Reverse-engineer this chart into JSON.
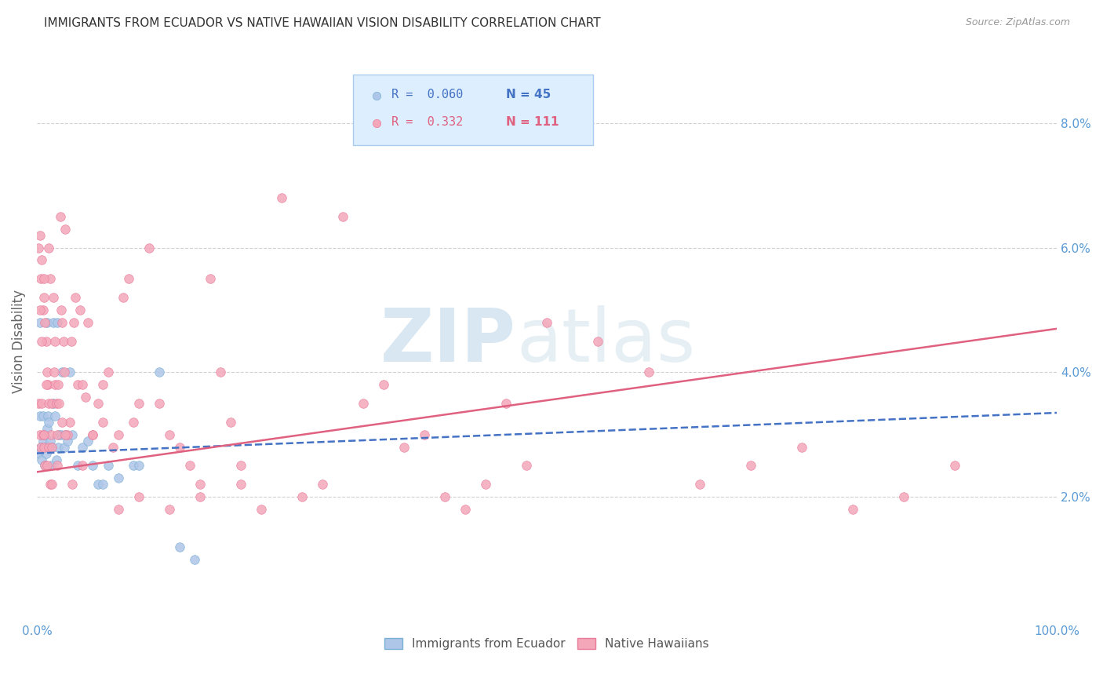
{
  "title": "IMMIGRANTS FROM ECUADOR VS NATIVE HAWAIIAN VISION DISABILITY CORRELATION CHART",
  "source": "Source: ZipAtlas.com",
  "ylabel": "Vision Disability",
  "xlim": [
    0,
    1.0
  ],
  "ylim": [
    0.0,
    0.09
  ],
  "xticks": [
    0.0,
    1.0
  ],
  "xtick_labels": [
    "0.0%",
    "100.0%"
  ],
  "yticks_left": [],
  "ytick_labels_left": [],
  "yticks_right": [
    0.0,
    0.02,
    0.04,
    0.06,
    0.08
  ],
  "ytick_labels_right": [
    "",
    "2.0%",
    "4.0%",
    "6.0%",
    "8.0%"
  ],
  "scatter_blue": {
    "label": "Immigrants from Ecuador",
    "R": 0.06,
    "N": 45,
    "color": "#aec6e8",
    "edge_color": "#7aafd4",
    "x": [
      0.002,
      0.003,
      0.003,
      0.004,
      0.005,
      0.006,
      0.006,
      0.007,
      0.008,
      0.008,
      0.009,
      0.01,
      0.01,
      0.011,
      0.012,
      0.013,
      0.014,
      0.015,
      0.016,
      0.016,
      0.018,
      0.019,
      0.02,
      0.021,
      0.022,
      0.024,
      0.025,
      0.027,
      0.028,
      0.03,
      0.032,
      0.035,
      0.04,
      0.045,
      0.05,
      0.055,
      0.06,
      0.065,
      0.07,
      0.08,
      0.095,
      0.1,
      0.12,
      0.14,
      0.155
    ],
    "y": [
      0.027,
      0.033,
      0.048,
      0.028,
      0.026,
      0.033,
      0.029,
      0.03,
      0.028,
      0.025,
      0.027,
      0.031,
      0.048,
      0.033,
      0.032,
      0.029,
      0.025,
      0.028,
      0.035,
      0.048,
      0.033,
      0.026,
      0.048,
      0.028,
      0.03,
      0.03,
      0.04,
      0.028,
      0.03,
      0.029,
      0.04,
      0.03,
      0.025,
      0.028,
      0.029,
      0.025,
      0.022,
      0.022,
      0.025,
      0.023,
      0.025,
      0.025,
      0.04,
      0.012,
      0.01
    ]
  },
  "scatter_pink": {
    "label": "Native Hawaiians",
    "R": 0.332,
    "N": 111,
    "color": "#f4a7b9",
    "edge_color": "#e87a9a",
    "x": [
      0.002,
      0.002,
      0.003,
      0.003,
      0.004,
      0.004,
      0.005,
      0.005,
      0.006,
      0.006,
      0.007,
      0.007,
      0.008,
      0.008,
      0.009,
      0.01,
      0.01,
      0.011,
      0.012,
      0.012,
      0.013,
      0.013,
      0.014,
      0.015,
      0.015,
      0.016,
      0.017,
      0.018,
      0.019,
      0.02,
      0.021,
      0.022,
      0.023,
      0.024,
      0.025,
      0.026,
      0.027,
      0.028,
      0.03,
      0.032,
      0.034,
      0.036,
      0.038,
      0.04,
      0.042,
      0.045,
      0.048,
      0.05,
      0.055,
      0.06,
      0.065,
      0.07,
      0.075,
      0.08,
      0.085,
      0.09,
      0.095,
      0.1,
      0.11,
      0.12,
      0.13,
      0.14,
      0.15,
      0.16,
      0.17,
      0.18,
      0.19,
      0.2,
      0.22,
      0.24,
      0.26,
      0.28,
      0.3,
      0.32,
      0.34,
      0.36,
      0.38,
      0.4,
      0.42,
      0.44,
      0.46,
      0.48,
      0.5,
      0.55,
      0.6,
      0.65,
      0.7,
      0.75,
      0.8,
      0.85,
      0.9,
      0.003,
      0.005,
      0.007,
      0.009,
      0.015,
      0.02,
      0.025,
      0.035,
      0.045,
      0.055,
      0.065,
      0.08,
      0.1,
      0.13,
      0.16,
      0.2,
      0.007,
      0.012,
      0.018,
      0.028
    ],
    "y": [
      0.06,
      0.035,
      0.062,
      0.03,
      0.055,
      0.028,
      0.058,
      0.035,
      0.05,
      0.03,
      0.052,
      0.028,
      0.048,
      0.025,
      0.045,
      0.04,
      0.025,
      0.038,
      0.035,
      0.028,
      0.055,
      0.022,
      0.03,
      0.035,
      0.022,
      0.052,
      0.04,
      0.038,
      0.035,
      0.03,
      0.038,
      0.035,
      0.065,
      0.05,
      0.048,
      0.045,
      0.04,
      0.063,
      0.03,
      0.032,
      0.045,
      0.048,
      0.052,
      0.038,
      0.05,
      0.038,
      0.036,
      0.048,
      0.03,
      0.035,
      0.038,
      0.04,
      0.028,
      0.03,
      0.052,
      0.055,
      0.032,
      0.035,
      0.06,
      0.035,
      0.03,
      0.028,
      0.025,
      0.022,
      0.055,
      0.04,
      0.032,
      0.025,
      0.018,
      0.068,
      0.02,
      0.022,
      0.065,
      0.035,
      0.038,
      0.028,
      0.03,
      0.02,
      0.018,
      0.022,
      0.035,
      0.025,
      0.048,
      0.045,
      0.04,
      0.022,
      0.025,
      0.028,
      0.018,
      0.02,
      0.025,
      0.05,
      0.045,
      0.03,
      0.038,
      0.028,
      0.025,
      0.032,
      0.022,
      0.025,
      0.03,
      0.032,
      0.018,
      0.02,
      0.018,
      0.02,
      0.022,
      0.055,
      0.06,
      0.045,
      0.03
    ]
  },
  "blue_line": {
    "x_start": 0.0,
    "x_end": 1.0,
    "y_start": 0.027,
    "y_end": 0.0335,
    "color": "#4472c4",
    "linestyle": "--",
    "linewidth": 1.8
  },
  "pink_line": {
    "x_start": 0.0,
    "x_end": 1.0,
    "y_start": 0.024,
    "y_end": 0.047,
    "color": "#e06080",
    "linestyle": "-",
    "linewidth": 1.8
  },
  "legend_box": {
    "blue_R": "0.060",
    "blue_N": "45",
    "pink_R": "0.332",
    "pink_N": "111",
    "facecolor": "#ddeeff",
    "edgecolor": "#aaccee"
  },
  "watermark_text": "ZIPatlas",
  "watermark_color": "#c8dff0",
  "background_color": "#ffffff",
  "grid_color": "#cccccc",
  "title_color": "#333333",
  "axis_tick_color": "#5b9bd5",
  "marker_size": 70,
  "title_fontsize": 11,
  "source_fontsize": 9
}
